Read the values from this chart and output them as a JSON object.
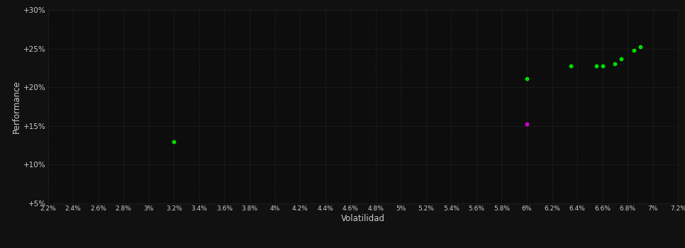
{
  "background_color": "#111111",
  "plot_bg_color": "#0d0d0d",
  "grid_color": "#333333",
  "text_color": "#cccccc",
  "xlabel": "Volatilidad",
  "ylabel": "Performance",
  "xlim": [
    0.022,
    0.072
  ],
  "ylim": [
    0.05,
    0.3
  ],
  "xticks": [
    0.022,
    0.024,
    0.026,
    0.028,
    0.03,
    0.032,
    0.034,
    0.036,
    0.038,
    0.04,
    0.042,
    0.044,
    0.046,
    0.048,
    0.05,
    0.052,
    0.054,
    0.056,
    0.058,
    0.06,
    0.062,
    0.064,
    0.066,
    0.068,
    0.07,
    0.072
  ],
  "yticks": [
    0.05,
    0.1,
    0.15,
    0.2,
    0.25,
    0.3
  ],
  "ytick_labels": [
    "+5%",
    "+10%",
    "+15%",
    "+20%",
    "+25%",
    "+30%"
  ],
  "xtick_labels": [
    "2.2%",
    "2.4%",
    "2.6%",
    "2.8%",
    "3%",
    "3.2%",
    "3.4%",
    "3.6%",
    "3.8%",
    "4%",
    "4.2%",
    "4.4%",
    "4.6%",
    "4.8%",
    "5%",
    "5.2%",
    "5.4%",
    "5.6%",
    "5.8%",
    "6%",
    "6.2%",
    "6.4%",
    "6.6%",
    "6.8%",
    "7%",
    "7.2%"
  ],
  "green_points": [
    [
      0.032,
      0.13
    ],
    [
      0.06,
      0.211
    ],
    [
      0.0635,
      0.228
    ],
    [
      0.0655,
      0.228
    ],
    [
      0.066,
      0.228
    ],
    [
      0.067,
      0.23
    ],
    [
      0.0675,
      0.237
    ],
    [
      0.0685,
      0.248
    ],
    [
      0.069,
      0.252
    ]
  ],
  "magenta_points": [
    [
      0.06,
      0.153
    ]
  ],
  "point_size": 18,
  "green_color": "#00dd00",
  "magenta_color": "#cc00cc"
}
